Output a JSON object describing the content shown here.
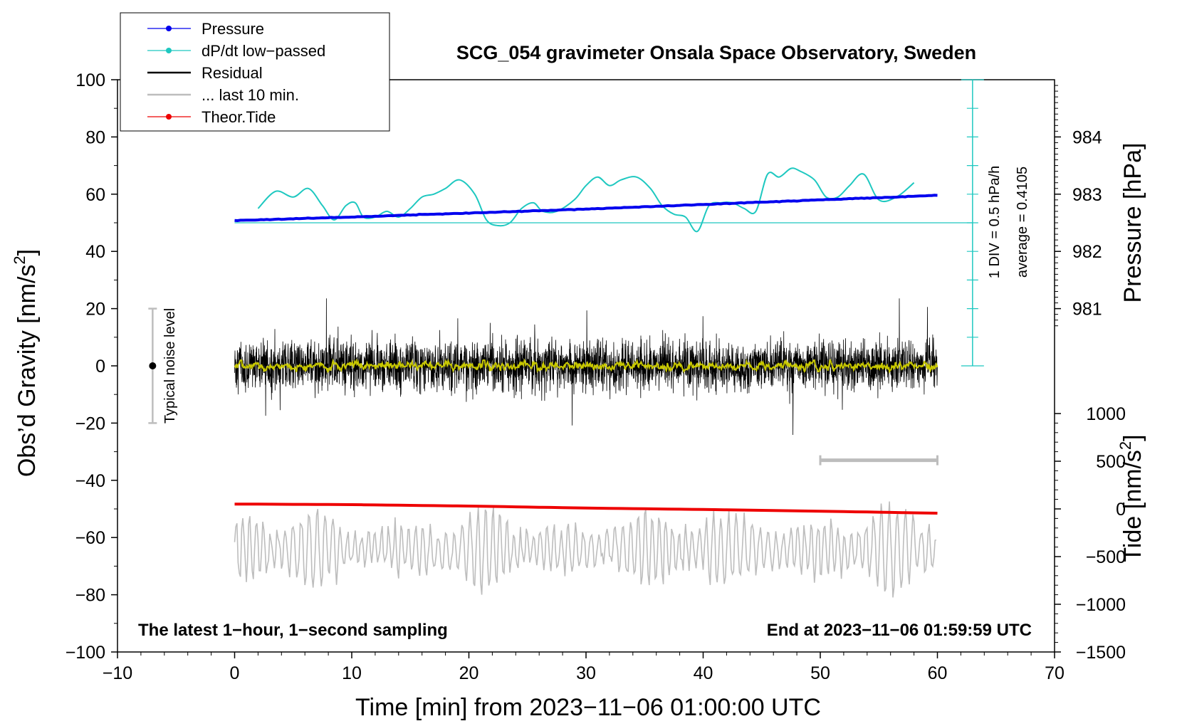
{
  "chart_data": {
    "type": "line",
    "title": "SCG_054 gravimeter Onsala Space Observatory, Sweden",
    "xlabel": "Time [min] from 2023−11−06 01:00:00 UTC",
    "ylabel": "Obs’d Gravity [nm/s²]",
    "ylabel_main": "Obs’d Gravity [nm/s",
    "ylabel_sup": "2",
    "ylabel_end": "]",
    "y2label": "Pressure [hPa]",
    "y3label": "Tide [nm/s²]",
    "y3label_main": "Tide [nm/s",
    "y3label_sup": "2",
    "y3label_end": "]",
    "xlim": [
      -10,
      70
    ],
    "ylim": [
      -100,
      100
    ],
    "grid": false,
    "x_ticks": [
      -10,
      0,
      10,
      20,
      30,
      40,
      50,
      60,
      70
    ],
    "x_tick_labels": [
      "−10",
      "0",
      "10",
      "20",
      "30",
      "40",
      "50",
      "60",
      "70"
    ],
    "y_ticks": [
      -100,
      -80,
      -60,
      -40,
      -20,
      0,
      20,
      40,
      60,
      80,
      100
    ],
    "y_tick_labels": [
      "−100",
      "−80",
      "−60",
      "−40",
      "−20",
      "0",
      "20",
      "40",
      "60",
      "80",
      "100"
    ],
    "pressure_axis": {
      "ticks": [
        981,
        982,
        983,
        984
      ],
      "tick_labels": [
        "981",
        "982",
        "983",
        "984"
      ],
      "gravity_at_981": 20,
      "gravity_per_hpa": 20
    },
    "tide_axis": {
      "ticks": [
        -1500,
        -1000,
        -500,
        0,
        500,
        1000
      ],
      "tick_labels": [
        "−1500",
        "−1000",
        "−500",
        "0",
        "500",
        "1000"
      ],
      "gravity_at_0": -50,
      "gravity_per_unit": 0.03333
    },
    "legend": {
      "position": "top-left",
      "entries": [
        {
          "label": "Pressure",
          "color": "#0000ee",
          "marker": true
        },
        {
          "label": "dP/dt low−passed",
          "color": "#1ec8c0",
          "marker": true
        },
        {
          "label": "Residual",
          "color": "#000000",
          "marker": false
        },
        {
          "label": "... last 10 min.",
          "color": "#bdbdbd",
          "marker": false
        },
        {
          "label": "Theor.Tide",
          "color": "#ee0000",
          "marker": true
        }
      ]
    },
    "series": [
      {
        "name": "Pressure",
        "color": "#0000ee",
        "unit": "hPa",
        "x": [
          0,
          10,
          20,
          30,
          40,
          50,
          60
        ],
        "y": [
          982.54,
          982.6,
          982.67,
          982.74,
          982.82,
          982.9,
          982.98
        ]
      },
      {
        "name": "dP/dt low-passed",
        "color": "#1ec8c0",
        "unit": "gravity-plot units",
        "x": [
          2,
          3.5,
          5,
          6.3,
          7.5,
          8.5,
          9.5,
          10.3,
          11,
          12,
          13,
          14,
          15,
          16,
          17,
          18,
          19.2,
          20.5,
          21.5,
          22.5,
          23.5,
          24.5,
          25.5,
          26.3,
          27.5,
          29,
          30,
          31,
          32,
          33,
          34.3,
          35.5,
          36.5,
          37.5,
          38.5,
          39.5,
          40.5,
          41.5,
          42.5,
          43.5,
          44.5,
          45.5,
          46.5,
          47.5,
          48.3,
          49.5,
          50.5,
          51.5,
          52.5,
          53.7,
          55,
          56.5,
          58
        ],
        "y": [
          55,
          61,
          59,
          62,
          56,
          51,
          56,
          57,
          52,
          52,
          54,
          52,
          55,
          59,
          60,
          62,
          65,
          60,
          51,
          49,
          50,
          55,
          57,
          54,
          54,
          58,
          63,
          66,
          63,
          65,
          66,
          62,
          56,
          53,
          52,
          47,
          56,
          57,
          57,
          55,
          54,
          67,
          66,
          69,
          68,
          65,
          59,
          59,
          63,
          67,
          58,
          59,
          64
        ]
      },
      {
        "name": "Residual",
        "color": "#000000",
        "unit": "nm/s²",
        "x_range": [
          0,
          60
        ],
        "mean": 0,
        "typical_range": [
          -20,
          20
        ],
        "extremes": [
          -28,
          26
        ]
      },
      {
        "name": "Residual smoothed",
        "color": "#c8c800",
        "unit": "nm/s²",
        "x_range": [
          0,
          60
        ],
        "mean": 0,
        "typical_range": [
          -2,
          2
        ]
      },
      {
        "name": "... last 10 min.",
        "color": "#bdbdbd",
        "unit": "nm/s²",
        "x_range": [
          0,
          60
        ],
        "mean": -64,
        "typical_range": [
          -80,
          -45
        ],
        "extremes": [
          -82,
          -38
        ]
      },
      {
        "name": "Theor.Tide",
        "color": "#ee0000",
        "unit": "nm/s²",
        "x": [
          0,
          10,
          20,
          30,
          40,
          50,
          60
        ],
        "y": [
          -48.3,
          -48.5,
          -49.0,
          -49.7,
          -50.2,
          -50.8,
          -51.5
        ]
      }
    ],
    "annotations": {
      "scale_bar": {
        "text1": "1 DIV = 0.5 hPa/h",
        "text2": "average = 0.4105",
        "x": 63,
        "y_range": [
          0,
          100
        ],
        "baseline_y": 50
      },
      "noise_bar": {
        "text": "Typical noise level",
        "x": -7,
        "y_range": [
          -20,
          20
        ]
      },
      "last10_bar": {
        "x_range": [
          50,
          60
        ],
        "y": -33
      },
      "note_left": "The latest 1−hour, 1−second sampling",
      "note_right": "End at 2023−11−06 01:59:59 UTC"
    }
  }
}
